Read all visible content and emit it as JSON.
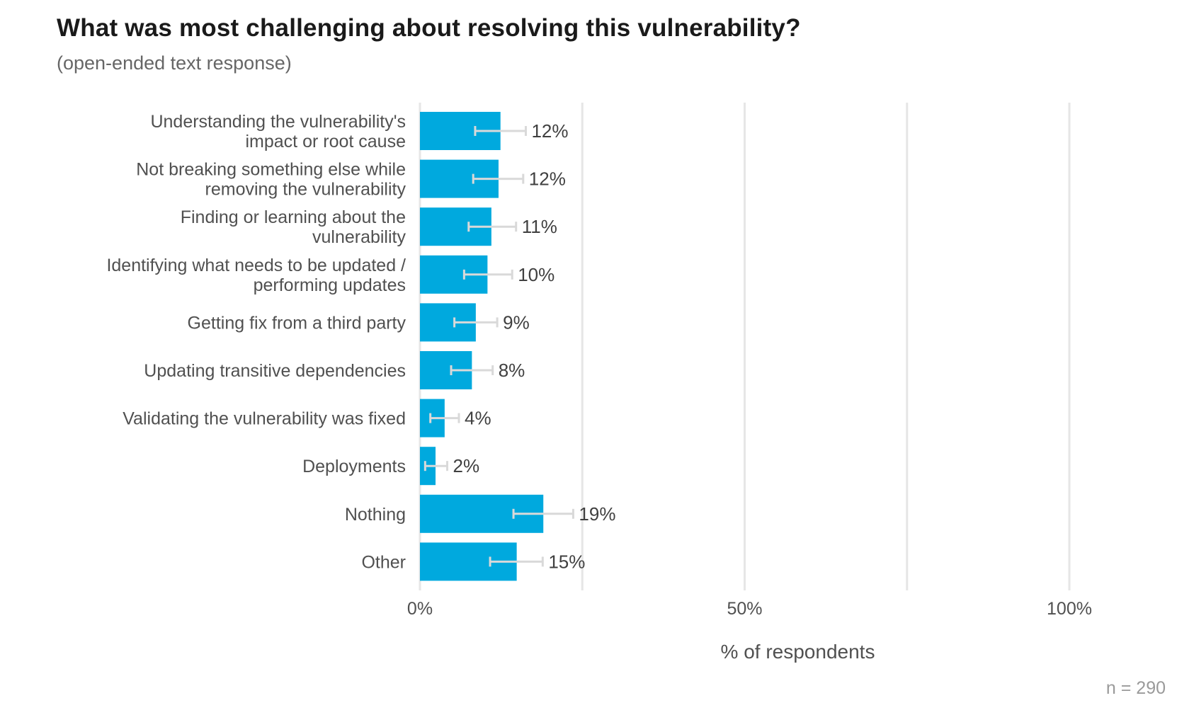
{
  "chart_data": {
    "type": "bar",
    "orientation": "horizontal",
    "title": "What was most challenging about resolving this vulnerability?",
    "subtitle": "(open-ended text response)",
    "xlabel": "% of respondents",
    "ylabel": "",
    "xlim": [
      0,
      100
    ],
    "x_ticks": [
      0,
      50,
      100
    ],
    "x_tick_labels": [
      "0%",
      "50%",
      "100%"
    ],
    "gridlines_at": [
      0,
      25,
      50,
      75,
      100
    ],
    "bar_color": "#00a9de",
    "error_bar_color": "#d9d9d9",
    "categories": [
      [
        "Understanding the vulnerability's",
        "impact or root cause"
      ],
      [
        "Not breaking something else while",
        "removing the vulnerability"
      ],
      [
        "Finding or learning about the",
        "vulnerability"
      ],
      [
        "Identifying what needs to be updated /",
        "performing updates"
      ],
      [
        "Getting fix from a third party"
      ],
      [
        "Updating transitive dependencies"
      ],
      [
        "Validating the vulnerability was fixed"
      ],
      [
        "Deployments"
      ],
      [
        "Nothing"
      ],
      [
        "Other"
      ]
    ],
    "values": [
      12.4,
      12.1,
      11.0,
      10.4,
      8.6,
      8.0,
      3.8,
      2.4,
      19.0,
      14.9
    ],
    "error_low": [
      8.5,
      8.2,
      7.5,
      6.8,
      5.3,
      4.8,
      1.6,
      0.8,
      14.4,
      10.8
    ],
    "error_high": [
      16.3,
      15.9,
      14.8,
      14.2,
      11.9,
      11.2,
      6.0,
      4.2,
      23.6,
      18.9
    ],
    "data_labels": [
      "12%",
      "12%",
      "11%",
      "10%",
      "9%",
      "8%",
      "4%",
      "2%",
      "19%",
      "15%"
    ]
  },
  "footnote": "n =  290"
}
